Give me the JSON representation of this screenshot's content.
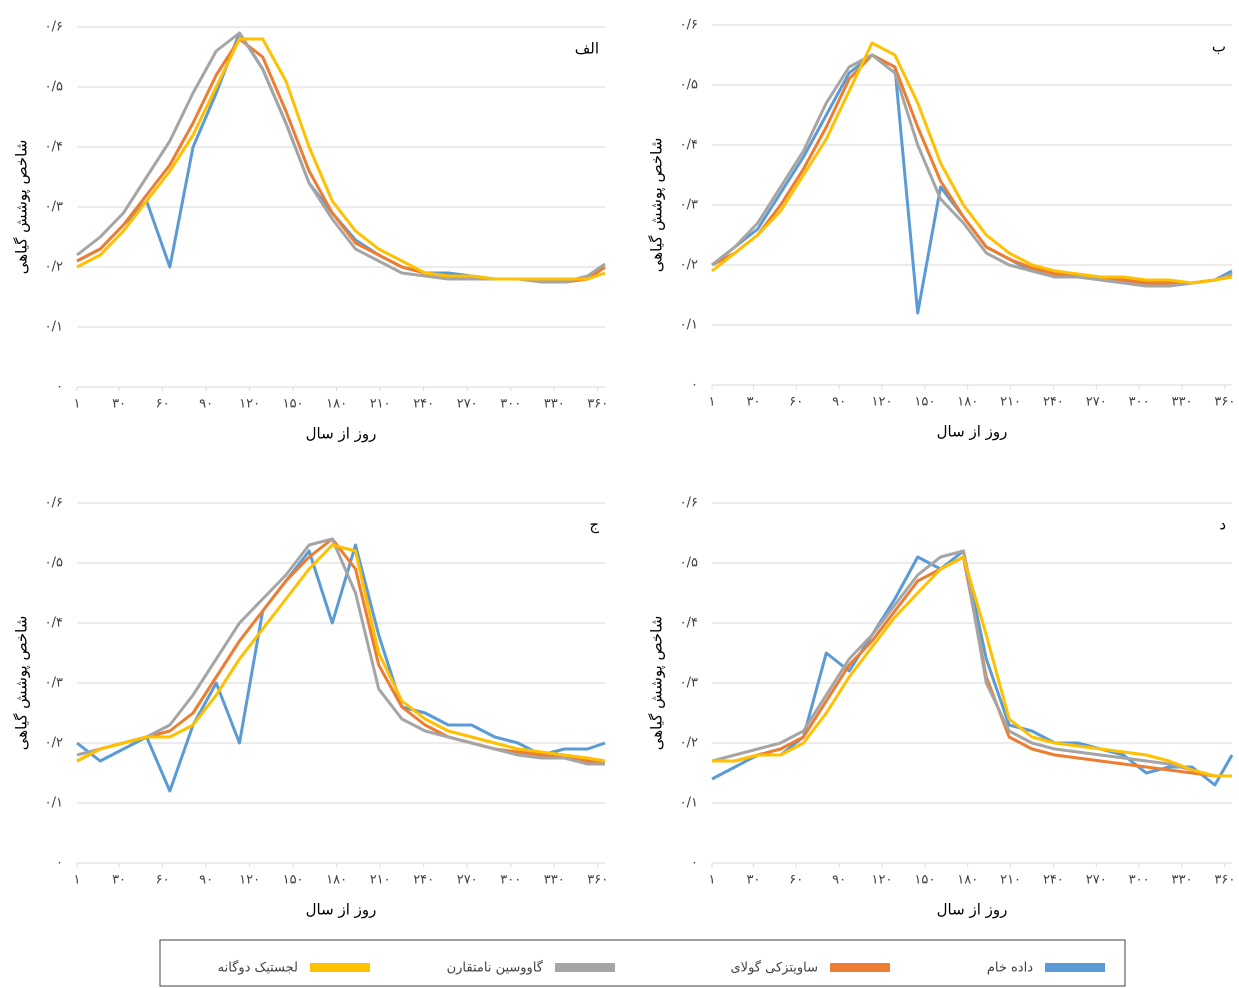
{
  "chart_data": [
    {
      "type": "line",
      "title": "الف",
      "x_label": "روز از سال",
      "y_label": "شاخص پوشش گیاهی",
      "x": [
        1,
        17,
        33,
        49,
        65,
        81,
        97,
        113,
        129,
        145,
        161,
        177,
        193,
        209,
        225,
        241,
        257,
        273,
        289,
        305,
        321,
        337,
        353,
        365
      ],
      "xlim": [
        1,
        365
      ],
      "xticks": [
        {
          "value": 1,
          "label": "۱"
        },
        {
          "value": 30,
          "label": "۳۰"
        },
        {
          "value": 60,
          "label": "۶۰"
        },
        {
          "value": 90,
          "label": "۹۰"
        },
        {
          "value": 120,
          "label": "۱۲۰"
        },
        {
          "value": 150,
          "label": "۱۵۰"
        },
        {
          "value": 180,
          "label": "۱۸۰"
        },
        {
          "value": 210,
          "label": "۲۱۰"
        },
        {
          "value": 240,
          "label": "۲۴۰"
        },
        {
          "value": 270,
          "label": "۲۷۰"
        },
        {
          "value": 300,
          "label": "۳۰۰"
        },
        {
          "value": 330,
          "label": "۳۳۰"
        },
        {
          "value": 360,
          "label": "۳۶۰"
        }
      ],
      "ylim": [
        0,
        0.6
      ],
      "yticks": [
        {
          "value": 0,
          "label": "۰"
        },
        {
          "value": 0.1,
          "label": "۰/۱"
        },
        {
          "value": 0.2,
          "label": "۰/۲"
        },
        {
          "value": 0.3,
          "label": "۰/۳"
        },
        {
          "value": 0.4,
          "label": "۰/۴"
        },
        {
          "value": 0.5,
          "label": "۰/۵"
        },
        {
          "value": 0.6,
          "label": "۰/۶"
        }
      ],
      "grid": true,
      "series": [
        {
          "name": "داده خام",
          "color": "#5b9bd5",
          "values": [
            0.21,
            0.23,
            0.27,
            0.31,
            0.2,
            0.4,
            0.49,
            0.59,
            0.53,
            0.44,
            0.34,
            0.29,
            0.245,
            0.22,
            0.2,
            0.19,
            0.19,
            0.185,
            0.18,
            0.18,
            0.18,
            0.175,
            0.18,
            0.2
          ]
        },
        {
          "name": "ساویتزکی گولای",
          "color": "#ed7d31",
          "values": [
            0.21,
            0.23,
            0.27,
            0.32,
            0.37,
            0.44,
            0.52,
            0.58,
            0.55,
            0.46,
            0.36,
            0.29,
            0.24,
            0.22,
            0.2,
            0.19,
            0.185,
            0.18,
            0.18,
            0.18,
            0.18,
            0.175,
            0.18,
            0.2
          ]
        },
        {
          "name": "گاووسین نامتقارن",
          "color": "#a5a5a5",
          "values": [
            0.22,
            0.25,
            0.29,
            0.35,
            0.41,
            0.49,
            0.56,
            0.59,
            0.53,
            0.44,
            0.34,
            0.28,
            0.23,
            0.21,
            0.19,
            0.185,
            0.18,
            0.18,
            0.18,
            0.18,
            0.175,
            0.175,
            0.185,
            0.205
          ]
        },
        {
          "name": "لجستیک دوگانه",
          "color": "#ffc000",
          "values": [
            0.2,
            0.22,
            0.26,
            0.31,
            0.36,
            0.42,
            0.5,
            0.58,
            0.58,
            0.51,
            0.4,
            0.31,
            0.26,
            0.23,
            0.21,
            0.19,
            0.185,
            0.185,
            0.18,
            0.18,
            0.18,
            0.18,
            0.18,
            0.19
          ]
        }
      ]
    },
    {
      "type": "line",
      "title": "ب",
      "x_label": "روز از سال",
      "y_label": "شاخص پوشش گیاهی",
      "x": [
        1,
        17,
        33,
        49,
        65,
        81,
        97,
        113,
        129,
        145,
        161,
        177,
        193,
        209,
        225,
        241,
        257,
        273,
        289,
        305,
        321,
        337,
        353,
        365
      ],
      "xlim": [
        1,
        365
      ],
      "xticks": [
        {
          "value": 1,
          "label": "۱"
        },
        {
          "value": 30,
          "label": "۳۰"
        },
        {
          "value": 60,
          "label": "۶۰"
        },
        {
          "value": 90,
          "label": "۹۰"
        },
        {
          "value": 120,
          "label": "۱۲۰"
        },
        {
          "value": 150,
          "label": "۱۵۰"
        },
        {
          "value": 180,
          "label": "۱۸۰"
        },
        {
          "value": 210,
          "label": "۲۱۰"
        },
        {
          "value": 240,
          "label": "۲۴۰"
        },
        {
          "value": 270,
          "label": "۲۷۰"
        },
        {
          "value": 300,
          "label": "۳۰۰"
        },
        {
          "value": 330,
          "label": "۳۳۰"
        },
        {
          "value": 360,
          "label": "۳۶۰"
        }
      ],
      "ylim": [
        0,
        0.6
      ],
      "yticks": [
        {
          "value": 0,
          "label": "۰"
        },
        {
          "value": 0.1,
          "label": "۰/۱"
        },
        {
          "value": 0.2,
          "label": "۰/۲"
        },
        {
          "value": 0.3,
          "label": "۰/۳"
        },
        {
          "value": 0.4,
          "label": "۰/۴"
        },
        {
          "value": 0.5,
          "label": "۰/۵"
        },
        {
          "value": 0.6,
          "label": "۰/۶"
        }
      ],
      "grid": true,
      "series": [
        {
          "color": "#5b9bd5",
          "values": [
            0.2,
            0.23,
            0.26,
            0.32,
            0.38,
            0.45,
            0.52,
            0.55,
            0.53,
            0.12,
            0.33,
            0.28,
            0.23,
            0.21,
            0.19,
            0.19,
            0.18,
            0.18,
            0.175,
            0.17,
            0.165,
            0.17,
            0.175,
            0.19
          ]
        },
        {
          "color": "#ed7d31",
          "values": [
            0.2,
            0.22,
            0.25,
            0.3,
            0.36,
            0.43,
            0.51,
            0.55,
            0.53,
            0.43,
            0.34,
            0.28,
            0.23,
            0.21,
            0.195,
            0.185,
            0.18,
            0.18,
            0.175,
            0.17,
            0.17,
            0.17,
            0.175,
            0.185
          ]
        },
        {
          "color": "#a5a5a5",
          "values": [
            0.2,
            0.23,
            0.27,
            0.33,
            0.39,
            0.47,
            0.53,
            0.55,
            0.52,
            0.4,
            0.31,
            0.27,
            0.22,
            0.2,
            0.19,
            0.18,
            0.18,
            0.175,
            0.17,
            0.165,
            0.165,
            0.17,
            0.175,
            0.185
          ]
        },
        {
          "color": "#ffc000",
          "values": [
            0.19,
            0.22,
            0.25,
            0.29,
            0.35,
            0.41,
            0.49,
            0.57,
            0.55,
            0.47,
            0.37,
            0.3,
            0.25,
            0.22,
            0.2,
            0.19,
            0.185,
            0.18,
            0.18,
            0.175,
            0.175,
            0.17,
            0.175,
            0.18
          ]
        }
      ]
    },
    {
      "type": "line",
      "title": "ج",
      "x_label": "روز از سال",
      "y_label": "شاخص پوشش گیاهی",
      "x": [
        1,
        17,
        33,
        49,
        65,
        81,
        97,
        113,
        129,
        145,
        161,
        177,
        193,
        209,
        225,
        241,
        257,
        273,
        289,
        305,
        321,
        337,
        353,
        365
      ],
      "xlim": [
        1,
        365
      ],
      "xticks": [
        {
          "value": 1,
          "label": "۱"
        },
        {
          "value": 30,
          "label": "۳۰"
        },
        {
          "value": 60,
          "label": "۶۰"
        },
        {
          "value": 90,
          "label": "۹۰"
        },
        {
          "value": 120,
          "label": "۱۲۰"
        },
        {
          "value": 150,
          "label": "۱۵۰"
        },
        {
          "value": 180,
          "label": "۱۸۰"
        },
        {
          "value": 210,
          "label": "۲۱۰"
        },
        {
          "value": 240,
          "label": "۲۴۰"
        },
        {
          "value": 270,
          "label": "۲۷۰"
        },
        {
          "value": 300,
          "label": "۳۰۰"
        },
        {
          "value": 330,
          "label": "۳۳۰"
        },
        {
          "value": 360,
          "label": "۳۶۰"
        }
      ],
      "ylim": [
        0,
        0.6
      ],
      "yticks": [
        {
          "value": 0,
          "label": "۰"
        },
        {
          "value": 0.1,
          "label": "۰/۱"
        },
        {
          "value": 0.2,
          "label": "۰/۲"
        },
        {
          "value": 0.3,
          "label": "۰/۳"
        },
        {
          "value": 0.4,
          "label": "۰/۴"
        },
        {
          "value": 0.5,
          "label": "۰/۵"
        },
        {
          "value": 0.6,
          "label": "۰/۶"
        }
      ],
      "grid": true,
      "series": [
        {
          "color": "#5b9bd5",
          "values": [
            0.2,
            0.17,
            0.19,
            0.21,
            0.12,
            0.23,
            0.3,
            0.2,
            0.42,
            0.47,
            0.52,
            0.4,
            0.53,
            0.38,
            0.26,
            0.25,
            0.23,
            0.23,
            0.21,
            0.2,
            0.18,
            0.19,
            0.19,
            0.2
          ]
        },
        {
          "color": "#ed7d31",
          "values": [
            0.17,
            0.19,
            0.2,
            0.21,
            0.22,
            0.25,
            0.31,
            0.37,
            0.42,
            0.47,
            0.51,
            0.54,
            0.49,
            0.33,
            0.26,
            0.23,
            0.21,
            0.2,
            0.19,
            0.185,
            0.18,
            0.175,
            0.17,
            0.17
          ]
        },
        {
          "color": "#a5a5a5",
          "values": [
            0.18,
            0.19,
            0.2,
            0.21,
            0.23,
            0.28,
            0.34,
            0.4,
            0.44,
            0.48,
            0.53,
            0.54,
            0.45,
            0.29,
            0.24,
            0.22,
            0.21,
            0.2,
            0.19,
            0.18,
            0.175,
            0.175,
            0.165,
            0.165
          ]
        },
        {
          "color": "#ffc000",
          "values": [
            0.17,
            0.19,
            0.2,
            0.21,
            0.21,
            0.23,
            0.28,
            0.34,
            0.39,
            0.44,
            0.49,
            0.53,
            0.52,
            0.35,
            0.27,
            0.24,
            0.22,
            0.21,
            0.2,
            0.19,
            0.185,
            0.18,
            0.175,
            0.17
          ]
        }
      ]
    },
    {
      "type": "line",
      "title": "د",
      "x_label": "روز از سال",
      "y_label": "شاخص پوشش گیاهی",
      "x": [
        1,
        17,
        33,
        49,
        65,
        81,
        97,
        113,
        129,
        145,
        161,
        177,
        193,
        209,
        225,
        241,
        257,
        273,
        289,
        305,
        321,
        337,
        353,
        365
      ],
      "xlim": [
        1,
        365
      ],
      "xticks": [
        {
          "value": 1,
          "label": "۱"
        },
        {
          "value": 30,
          "label": "۳۰"
        },
        {
          "value": 60,
          "label": "۶۰"
        },
        {
          "value": 90,
          "label": "۹۰"
        },
        {
          "value": 120,
          "label": "۱۲۰"
        },
        {
          "value": 150,
          "label": "۱۵۰"
        },
        {
          "value": 180,
          "label": "۱۸۰"
        },
        {
          "value": 210,
          "label": "۲۱۰"
        },
        {
          "value": 240,
          "label": "۲۴۰"
        },
        {
          "value": 270,
          "label": "۲۷۰"
        },
        {
          "value": 300,
          "label": "۳۰۰"
        },
        {
          "value": 330,
          "label": "۳۳۰"
        },
        {
          "value": 360,
          "label": "۳۶۰"
        }
      ],
      "ylim": [
        0,
        0.6
      ],
      "yticks": [
        {
          "value": 0,
          "label": "۰"
        },
        {
          "value": 0.1,
          "label": "۰/۱"
        },
        {
          "value": 0.2,
          "label": "۰/۲"
        },
        {
          "value": 0.3,
          "label": "۰/۳"
        },
        {
          "value": 0.4,
          "label": "۰/۴"
        },
        {
          "value": 0.5,
          "label": "۰/۵"
        },
        {
          "value": 0.6,
          "label": "۰/۶"
        }
      ],
      "grid": true,
      "series": [
        {
          "color": "#5b9bd5",
          "values": [
            0.14,
            0.16,
            0.18,
            0.18,
            0.21,
            0.35,
            0.32,
            0.38,
            0.44,
            0.51,
            0.49,
            0.52,
            0.34,
            0.23,
            0.22,
            0.2,
            0.2,
            0.19,
            0.18,
            0.15,
            0.16,
            0.16,
            0.13,
            0.18
          ]
        },
        {
          "color": "#ed7d31",
          "values": [
            0.17,
            0.17,
            0.18,
            0.19,
            0.21,
            0.27,
            0.33,
            0.37,
            0.42,
            0.47,
            0.49,
            0.51,
            0.31,
            0.21,
            0.19,
            0.18,
            0.175,
            0.17,
            0.165,
            0.16,
            0.155,
            0.15,
            0.145,
            0.145
          ]
        },
        {
          "color": "#a5a5a5",
          "values": [
            0.17,
            0.18,
            0.19,
            0.2,
            0.22,
            0.28,
            0.34,
            0.38,
            0.43,
            0.48,
            0.51,
            0.52,
            0.3,
            0.22,
            0.2,
            0.19,
            0.185,
            0.18,
            0.175,
            0.17,
            0.165,
            0.155,
            0.145,
            0.145
          ]
        },
        {
          "color": "#ffc000",
          "values": [
            0.17,
            0.17,
            0.18,
            0.18,
            0.2,
            0.25,
            0.31,
            0.36,
            0.41,
            0.45,
            0.49,
            0.51,
            0.38,
            0.24,
            0.21,
            0.2,
            0.195,
            0.19,
            0.185,
            0.18,
            0.17,
            0.155,
            0.145,
            0.145
          ]
        }
      ]
    }
  ]
}
